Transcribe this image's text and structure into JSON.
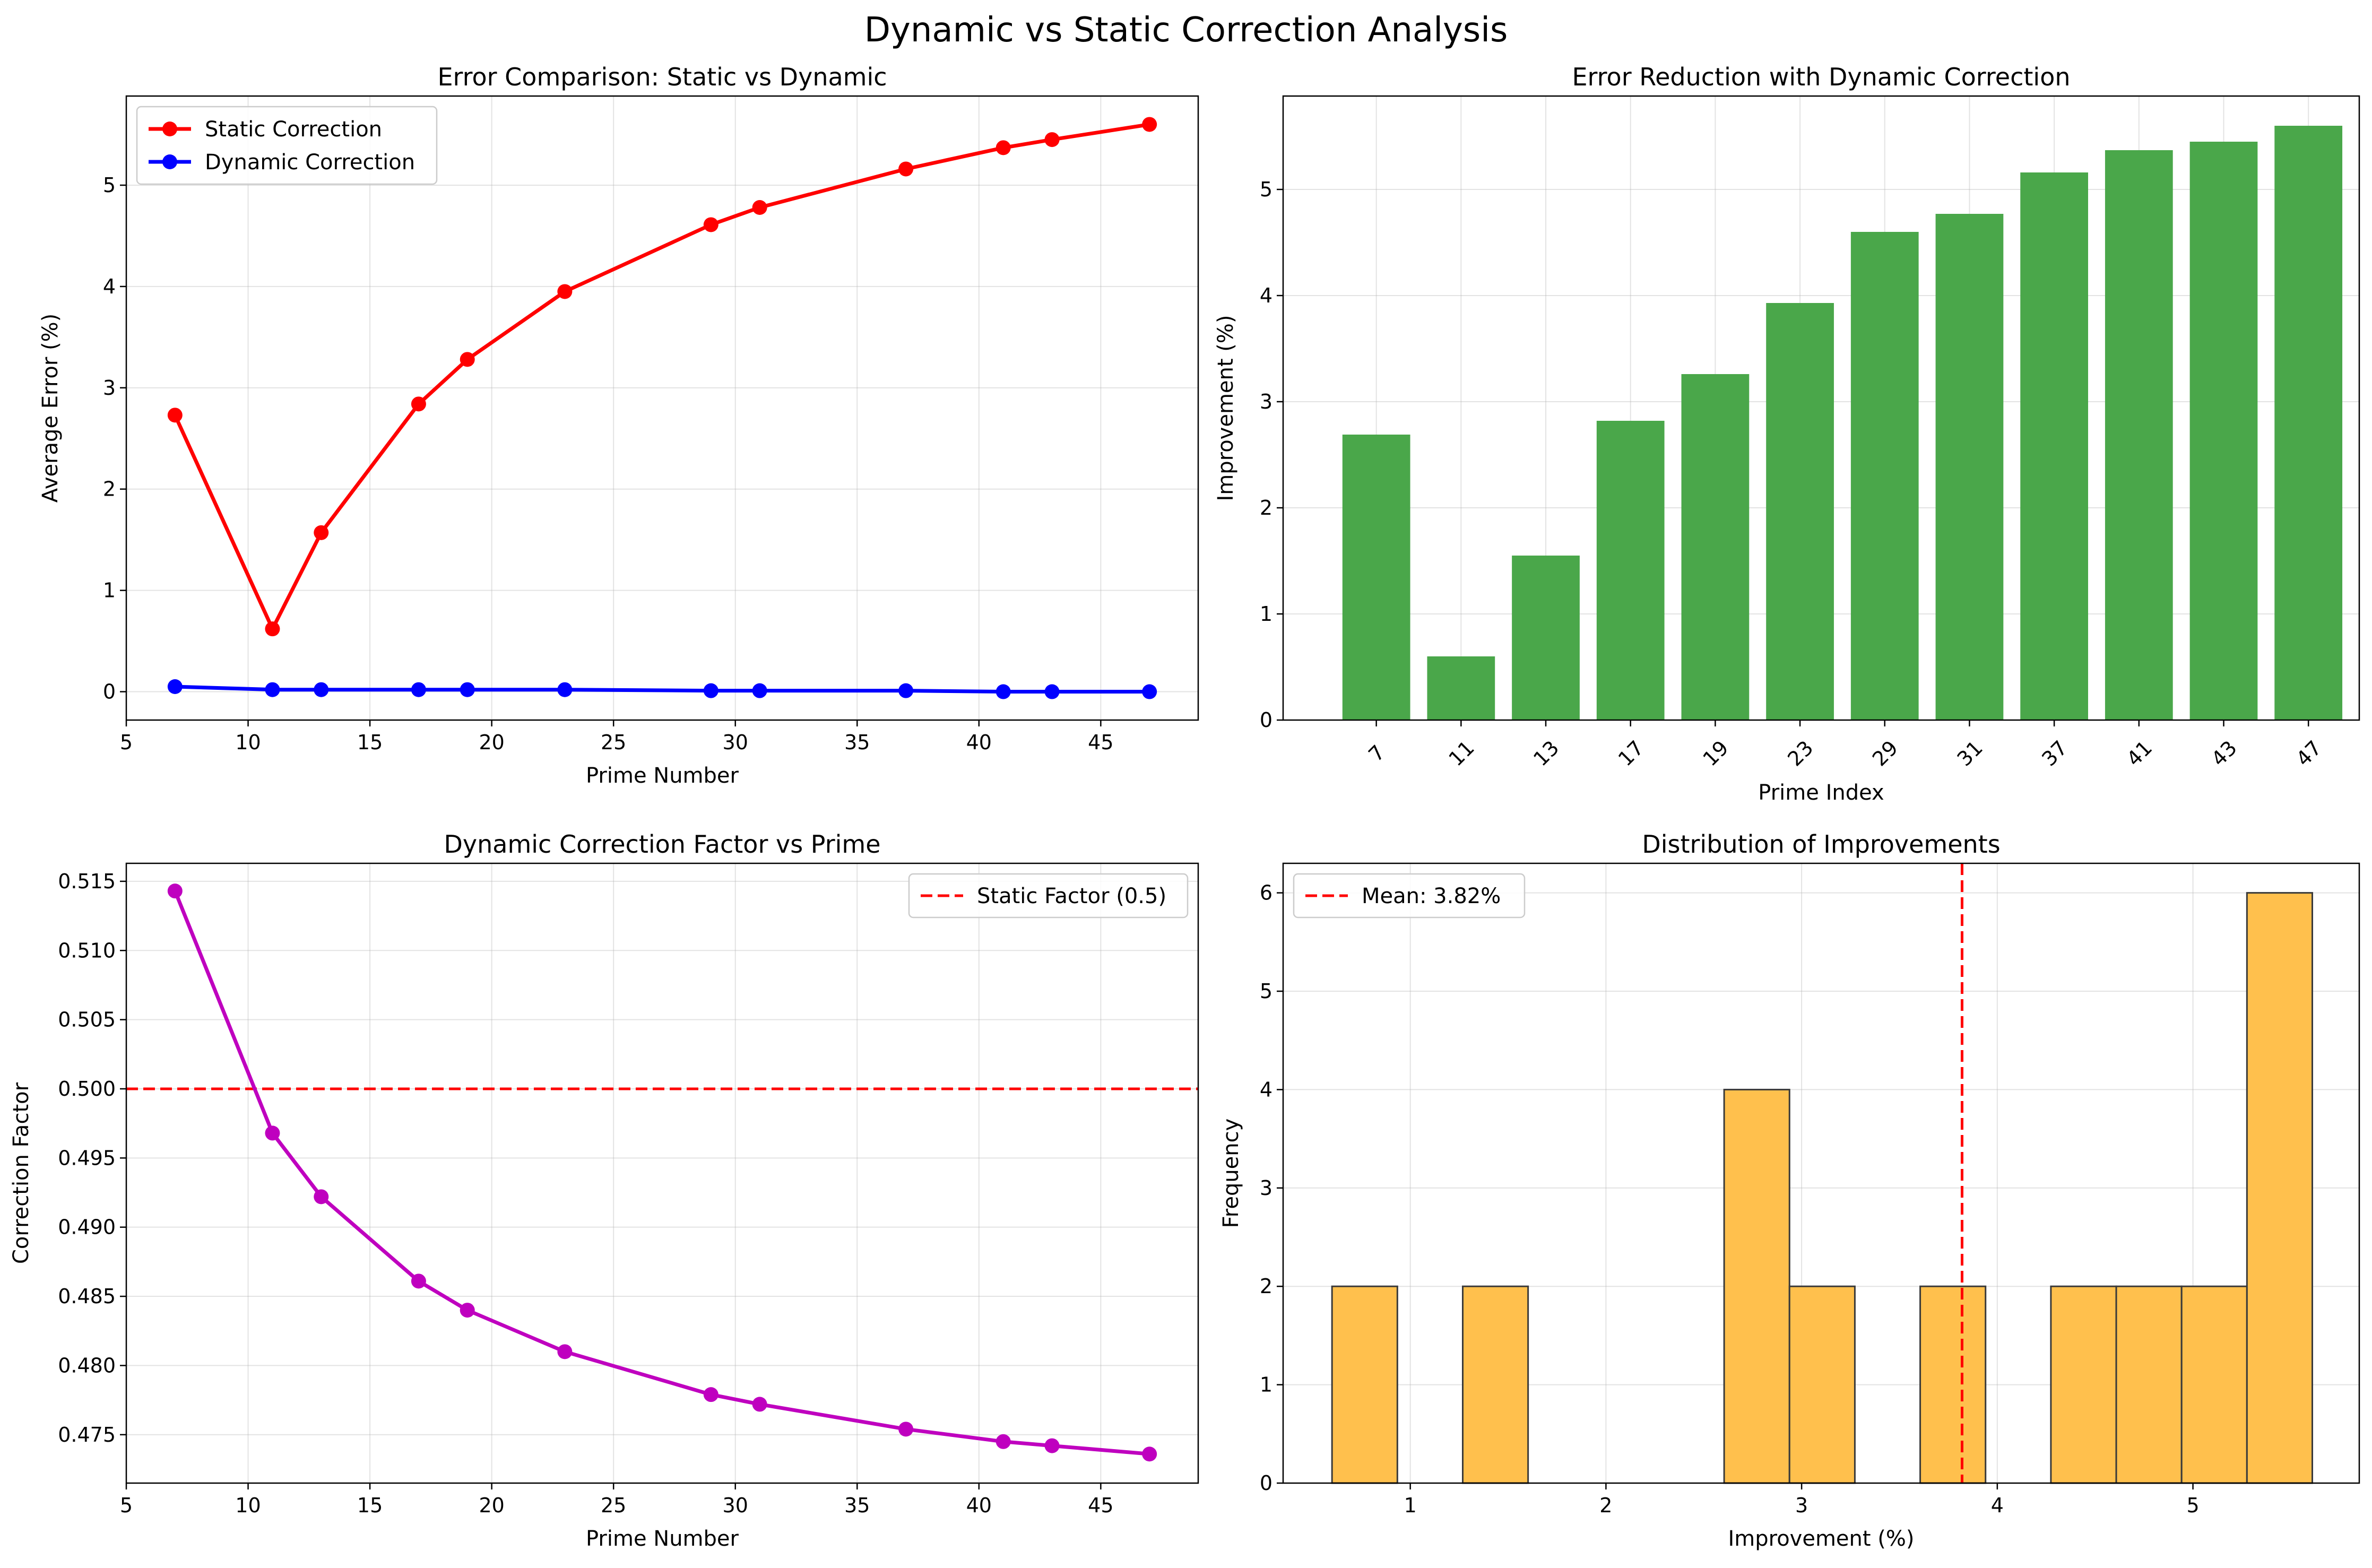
{
  "figure": {
    "suptitle": "Dynamic vs Static Correction Analysis"
  },
  "chart_data": [
    {
      "type": "line",
      "title": "Error Comparison: Static vs Dynamic",
      "xlabel": "Prime Number",
      "ylabel": "Average Error (%)",
      "xlim": [
        5,
        49
      ],
      "ylim": [
        -0.28,
        5.88
      ],
      "xticks": [
        5,
        10,
        15,
        20,
        25,
        30,
        35,
        40,
        45
      ],
      "yticks": [
        0,
        1,
        2,
        3,
        4,
        5
      ],
      "grid": true,
      "legend_position": "upper-left",
      "x": [
        7,
        11,
        13,
        17,
        19,
        23,
        29,
        31,
        37,
        41,
        43,
        47
      ],
      "series": [
        {
          "name": "Static Correction",
          "color": "#ff0000",
          "values": [
            2.73,
            0.62,
            1.57,
            2.84,
            3.28,
            3.95,
            4.61,
            4.78,
            5.16,
            5.37,
            5.45,
            5.6
          ]
        },
        {
          "name": "Dynamic Correction",
          "color": "#0000ff",
          "values": [
            0.05,
            0.02,
            0.02,
            0.02,
            0.02,
            0.02,
            0.01,
            0.01,
            0.01,
            0.0,
            0.0,
            0.0
          ]
        }
      ]
    },
    {
      "type": "bar",
      "title": "Error Reduction with Dynamic Correction",
      "xlabel": "Prime Index",
      "ylabel": "Improvement (%)",
      "ylim": [
        0,
        5.88
      ],
      "yticks": [
        0,
        1,
        2,
        3,
        4,
        5
      ],
      "grid": true,
      "color": "#4aa74a",
      "categories": [
        "7",
        "11",
        "13",
        "17",
        "19",
        "23",
        "29",
        "31",
        "37",
        "41",
        "43",
        "47"
      ],
      "values": [
        2.69,
        0.6,
        1.55,
        2.82,
        3.26,
        3.93,
        4.6,
        4.77,
        5.16,
        5.37,
        5.45,
        5.6
      ]
    },
    {
      "type": "line",
      "title": "Dynamic Correction Factor vs Prime",
      "xlabel": "Prime Number",
      "ylabel": "Correction Factor",
      "xlim": [
        5,
        49
      ],
      "ylim": [
        0.4715,
        0.5163
      ],
      "xticks": [
        5,
        10,
        15,
        20,
        25,
        30,
        35,
        40,
        45
      ],
      "yticks": [
        "0.475",
        "0.480",
        "0.485",
        "0.490",
        "0.495",
        "0.500",
        "0.505",
        "0.510",
        "0.515"
      ],
      "grid": true,
      "legend_position": "upper-right",
      "x": [
        7,
        11,
        13,
        17,
        19,
        23,
        29,
        31,
        37,
        41,
        43,
        47
      ],
      "series": [
        {
          "color": "#bf00bf",
          "values": [
            0.5143,
            0.4968,
            0.4922,
            0.4861,
            0.484,
            0.481,
            0.4779,
            0.4772,
            0.4754,
            0.4745,
            0.4742,
            0.4736
          ]
        }
      ],
      "reference_line": {
        "name": "Static Factor (0.5)",
        "value": 0.5,
        "color": "#ff0000",
        "style": "dashed"
      }
    },
    {
      "type": "bar",
      "subtype": "histogram",
      "title": "Distribution of Improvements",
      "xlabel": "Improvement (%)",
      "ylabel": "Frequency",
      "xlim": [
        0.35,
        5.85
      ],
      "ylim": [
        0,
        6.3
      ],
      "xticks": [
        1,
        2,
        3,
        4,
        5
      ],
      "yticks": [
        0,
        1,
        2,
        3,
        4,
        5,
        6
      ],
      "grid": true,
      "color": "#ffc04d",
      "bin_edges": [
        0.6,
        0.934,
        1.268,
        1.602,
        1.936,
        2.27,
        2.604,
        2.938,
        3.272,
        3.606,
        3.94,
        4.274,
        4.608,
        4.942,
        5.276,
        5.61
      ],
      "counts": [
        2,
        0,
        2,
        0,
        0,
        0,
        4,
        2,
        0,
        2,
        0,
        2,
        2,
        2,
        6
      ],
      "mean_line": {
        "name": "Mean: 3.82%",
        "value": 3.82,
        "color": "#ff0000",
        "style": "dashed"
      }
    }
  ]
}
